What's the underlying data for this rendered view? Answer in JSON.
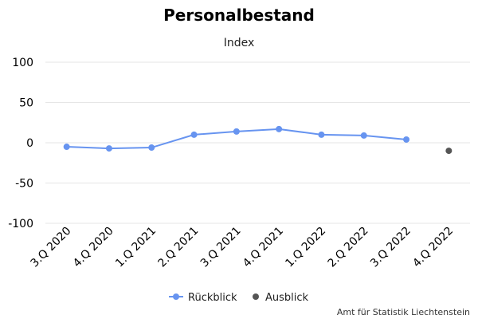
{
  "chart_data": {
    "type": "line",
    "title": "Personalbestand",
    "subtitle": "Index",
    "xlabel": "",
    "ylabel": "",
    "categories": [
      "3.Q 2020",
      "4.Q 2020",
      "1.Q 2021",
      "2.Q 2021",
      "3.Q 2021",
      "4.Q 2021",
      "1.Q 2022",
      "2.Q 2022",
      "3.Q 2022",
      "4.Q 2022"
    ],
    "ylim": [
      -100,
      100
    ],
    "yticks": [
      100,
      50,
      0,
      -50,
      -100
    ],
    "ytick_labels": [
      "100",
      "50",
      "0",
      "-50",
      "-100"
    ],
    "grid": true,
    "legend_position": "bottom-center",
    "series": [
      {
        "name": "Rückblick",
        "color": "#6794f0",
        "style": "line-with-markers",
        "values": [
          -5,
          -7,
          -6,
          10,
          14,
          17,
          10,
          9,
          4,
          null
        ]
      },
      {
        "name": "Ausblick",
        "color": "#555555",
        "style": "markers-only",
        "values": [
          null,
          null,
          null,
          null,
          null,
          null,
          null,
          null,
          null,
          -10
        ]
      }
    ],
    "credit": "Amt für Statistik Liechtenstein"
  }
}
